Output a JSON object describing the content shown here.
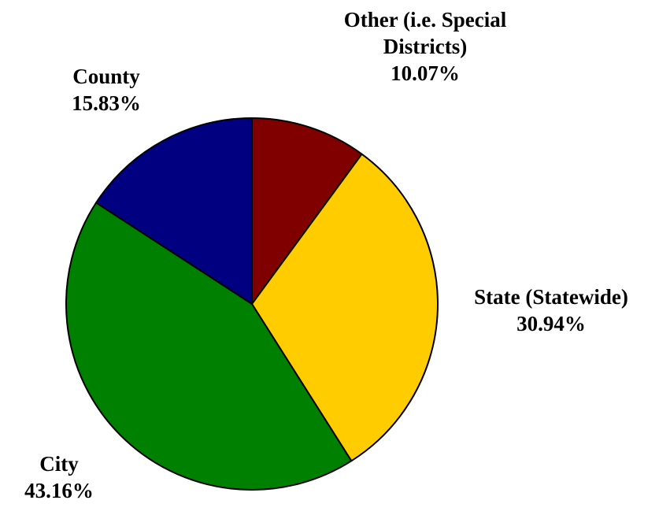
{
  "chart_data": {
    "type": "pie",
    "categories": [
      "Other (i.e. Special Districts)",
      "State (Statewide)",
      "City",
      "County"
    ],
    "values": [
      10.07,
      30.94,
      43.16,
      15.83
    ],
    "value_labels": [
      "10.07%",
      "30.94%",
      "43.16%",
      "15.83%"
    ],
    "colors": [
      "#800000",
      "#ffcc00",
      "#008000",
      "#000080"
    ]
  }
}
